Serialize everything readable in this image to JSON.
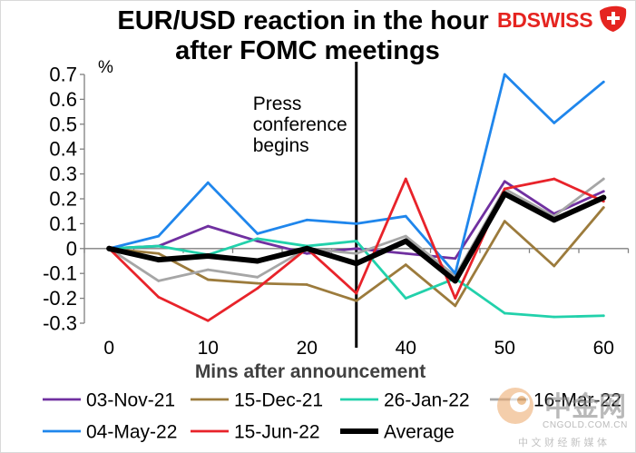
{
  "chart_data": {
    "type": "line",
    "title": [
      "EUR/USD reaction in the hour",
      "after FOMC meetings"
    ],
    "ylabel": "%",
    "xlabel": "Mins after announcement",
    "ylim": [
      -0.3,
      0.7
    ],
    "yticks": [
      0.7,
      0.6,
      0.5,
      0.4,
      0.3,
      0.2,
      0.1,
      0,
      -0.1,
      -0.2,
      -0.3
    ],
    "ytick_labels": [
      "0.7",
      "0.6",
      "0.5",
      "0.4",
      "0.3",
      "0.2",
      "0.1",
      "0",
      "-0.1",
      "-0.2",
      "-0.3"
    ],
    "x_labels": [
      "0",
      "",
      "10",
      "",
      "20",
      "",
      "40",
      "",
      "50",
      "",
      "60"
    ],
    "annotation": {
      "text": [
        "Press",
        "conference",
        "begins"
      ],
      "at_category": 5
    },
    "legend": "bottom",
    "series": [
      {
        "name": "03-Nov-21",
        "color": "#7030A0",
        "values": [
          0,
          0.01,
          0.09,
          0.03,
          -0.02,
          0.0,
          -0.02,
          -0.04,
          0.27,
          0.14,
          0.23
        ]
      },
      {
        "name": "15-Dec-21",
        "color": "#9C7B3C",
        "values": [
          0,
          -0.02,
          -0.125,
          -0.14,
          -0.145,
          -0.21,
          -0.065,
          -0.23,
          0.11,
          -0.07,
          0.165
        ]
      },
      {
        "name": "26-Jan-22",
        "color": "#22D1AB",
        "values": [
          0,
          0.01,
          -0.025,
          0.04,
          0.01,
          0.03,
          -0.2,
          -0.12,
          -0.26,
          -0.275,
          -0.27
        ]
      },
      {
        "name": "16-Mar-22",
        "color": "#A6A6A6",
        "values": [
          0,
          -0.13,
          -0.085,
          -0.115,
          0.0,
          -0.02,
          0.05,
          -0.11,
          0.24,
          0.13,
          0.28
        ]
      },
      {
        "name": "04-May-22",
        "color": "#1F86EC",
        "values": [
          0,
          0.05,
          0.265,
          0.06,
          0.115,
          0.1,
          0.13,
          -0.1,
          0.7,
          0.505,
          0.67
        ]
      },
      {
        "name": "15-Jun-22",
        "color": "#E8232A",
        "values": [
          0,
          -0.195,
          -0.29,
          -0.16,
          0.0,
          -0.18,
          0.28,
          -0.2,
          0.24,
          0.28,
          0.19
        ]
      },
      {
        "name": "Average",
        "color": "#000000",
        "highlight": true,
        "values": [
          0,
          -0.045,
          -0.03,
          -0.05,
          0.0,
          -0.06,
          0.03,
          -0.13,
          0.22,
          0.115,
          0.205
        ]
      }
    ]
  },
  "logo": {
    "text": "BDSWISS",
    "color": "#E52420"
  },
  "watermark": {
    "name": "中金网",
    "domain": "CNGOLD.COM.CN",
    "tagline": "中 文 财 经 新 媒 体"
  }
}
